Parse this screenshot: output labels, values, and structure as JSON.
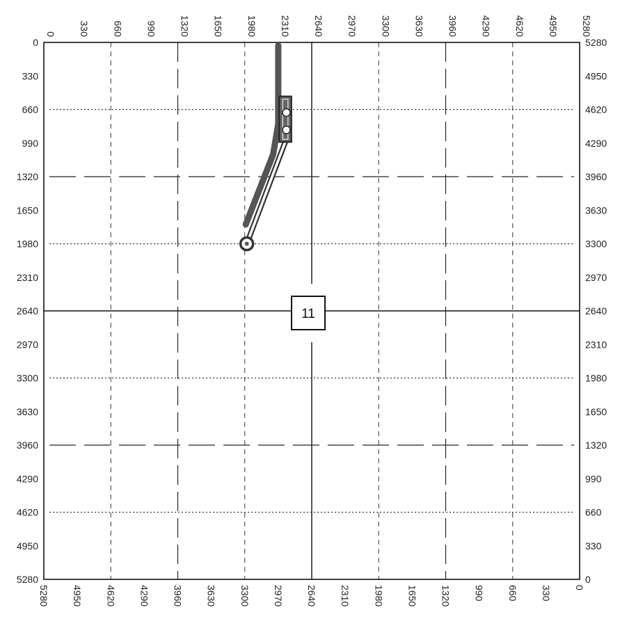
{
  "section": {
    "number": "11"
  },
  "grid": {
    "max_feet": 5280,
    "step_feet": 330,
    "tick_values": [
      0,
      330,
      660,
      990,
      1320,
      1650,
      1980,
      2310,
      2640,
      2970,
      3300,
      3630,
      3960,
      4290,
      4620,
      4950,
      5280
    ]
  },
  "wells": [
    {
      "type": "horizontal-lateral",
      "color": "#555555",
      "path": [
        [
          2310,
          30
        ],
        [
          2310,
          800
        ],
        [
          2260,
          1100
        ],
        [
          1990,
          1790
        ]
      ]
    },
    {
      "type": "horizontal-lateral",
      "color": "#444444",
      "path": [
        [
          2390,
          950
        ],
        [
          2280,
          1240
        ],
        [
          2000,
          1980
        ]
      ],
      "bottom_hole": [
        2000,
        1980
      ]
    }
  ],
  "pad": {
    "x_range": [
      2320,
      2440
    ],
    "y_range": [
      530,
      980
    ],
    "wellheads": [
      [
        2390,
        690
      ],
      [
        2390,
        860
      ]
    ]
  }
}
